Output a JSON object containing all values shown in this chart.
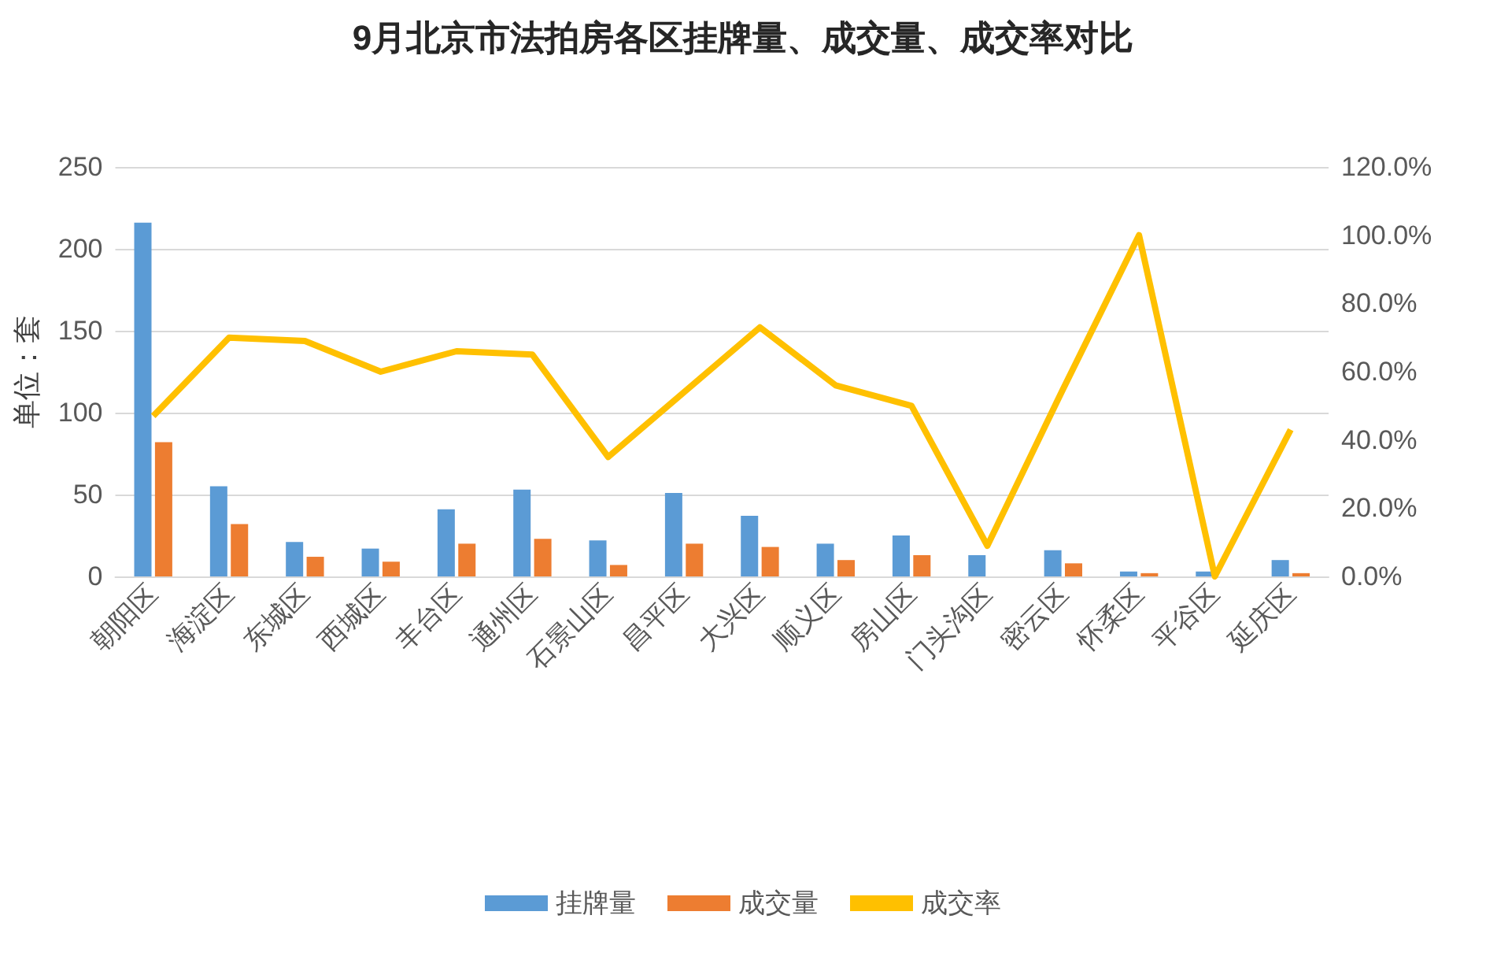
{
  "chart_data": {
    "type": "bar",
    "title": "9月北京市法拍房各区挂牌量、成交量、成交率对比",
    "ylabel": "单位：套",
    "categories": [
      "朝阳区",
      "海淀区",
      "东城区",
      "西城区",
      "丰台区",
      "通州区",
      "石景山区",
      "昌平区",
      "大兴区",
      "顺义区",
      "房山区",
      "门头沟区",
      "密云区",
      "怀柔区",
      "平谷区",
      "延庆区"
    ],
    "series": [
      {
        "name": "挂牌量",
        "color": "#5b9bd5",
        "values": [
          216,
          55,
          21,
          17,
          41,
          53,
          22,
          51,
          37,
          20,
          25,
          13,
          16,
          3,
          3,
          10
        ]
      },
      {
        "name": "成交量",
        "color": "#ed7d31",
        "values": [
          82,
          32,
          12,
          9,
          20,
          23,
          7,
          20,
          18,
          10,
          13,
          0,
          8,
          2,
          0,
          2
        ]
      },
      {
        "name": "成交率",
        "type": "line",
        "axis": "y2",
        "color": "#ffc000",
        "values": [
          47,
          70,
          69,
          60,
          66,
          65,
          35,
          54,
          73,
          56,
          50,
          9,
          55,
          100,
          0,
          43
        ]
      }
    ],
    "ylim": [
      0,
      250
    ],
    "yticks": [
      0,
      50,
      100,
      150,
      200,
      250
    ],
    "y2lim": [
      0,
      120
    ],
    "y2ticks": [
      {
        "value": 0,
        "label": "0.0%"
      },
      {
        "value": 20,
        "label": "20.0%"
      },
      {
        "value": 40,
        "label": "40.0%"
      },
      {
        "value": 60,
        "label": "60.0%"
      },
      {
        "value": 80,
        "label": "80.0%"
      },
      {
        "value": 100,
        "label": "100.0%"
      },
      {
        "value": 120,
        "label": "120.0%"
      }
    ],
    "grid": "y",
    "legend": "bottom",
    "marker": "none"
  }
}
